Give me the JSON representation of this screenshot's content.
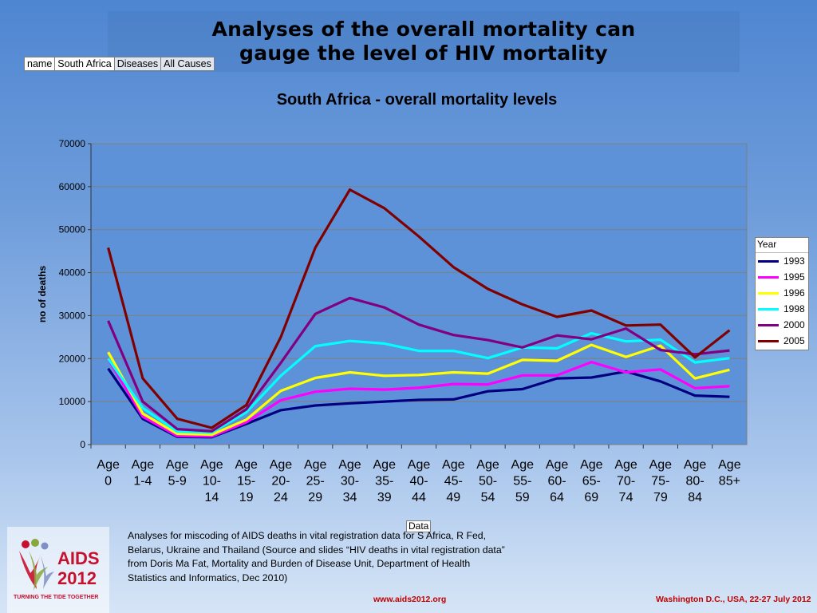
{
  "slide": {
    "title_line1": "Analyses of the overall mortality can",
    "title_line2": "gauge the level of HIV mortality",
    "caption": "Analyses for miscoding of AIDS deaths in vital registration data for S Africa, R Fed, Belarus, Ukraine and Thailand (Source and slides “HIV deaths in vital registration data” from Doris Ma Fat, Mortality and Burden of Disease Unit, Department of Health Statistics and Informatics, Dec 2010)",
    "footer_url": "www.aids2012.org",
    "footer_event": "Washington D.C., USA, 22-27 July 2012"
  },
  "filter_bar": {
    "name_label": "name",
    "name_value": "South Africa",
    "diseases_label": "Diseases",
    "diseases_value": "All Causes"
  },
  "logo": {
    "text_main": "AIDS",
    "text_year": "2012",
    "tagline": "TURNING THE TIDE TOGETHER"
  },
  "chart_data": {
    "type": "line",
    "title": "South Africa - overall mortality levels",
    "xlabel": "Data",
    "ylabel": "no of deaths",
    "ylim": [
      0,
      70000
    ],
    "yticks": [
      0,
      10000,
      20000,
      30000,
      40000,
      50000,
      60000,
      70000
    ],
    "grid": true,
    "legend_title": "Year",
    "legend_position": "right",
    "categories": [
      [
        "Age",
        "0"
      ],
      [
        "Age",
        "1-4"
      ],
      [
        "Age",
        "5-9"
      ],
      [
        "Age",
        "10-",
        "14"
      ],
      [
        "Age",
        "15-",
        "19"
      ],
      [
        "Age",
        "20-",
        "24"
      ],
      [
        "Age",
        "25-",
        "29"
      ],
      [
        "Age",
        "30-",
        "34"
      ],
      [
        "Age",
        "35-",
        "39"
      ],
      [
        "Age",
        "40-",
        "44"
      ],
      [
        "Age",
        "45-",
        "49"
      ],
      [
        "Age",
        "50-",
        "54"
      ],
      [
        "Age",
        "55-",
        "59"
      ],
      [
        "Age",
        "60-",
        "64"
      ],
      [
        "Age",
        "65-",
        "69"
      ],
      [
        "Age",
        "70-",
        "74"
      ],
      [
        "Age",
        "75-",
        "79"
      ],
      [
        "Age",
        "80-",
        "84"
      ],
      [
        "Age",
        "85+"
      ]
    ],
    "series": [
      {
        "name": "1993",
        "color": "#000080",
        "values": [
          17700,
          6000,
          1800,
          1700,
          4800,
          8000,
          9100,
          9600,
          10000,
          10400,
          10500,
          12400,
          12900,
          15400,
          15600,
          17000,
          14700,
          11400,
          11100
        ]
      },
      {
        "name": "1995",
        "color": "#ff00ff",
        "values": [
          19900,
          6500,
          2000,
          1900,
          5200,
          10300,
          12300,
          13000,
          12800,
          13200,
          14100,
          14000,
          16100,
          16100,
          19200,
          16800,
          17500,
          13100,
          13600
        ]
      },
      {
        "name": "1996",
        "color": "#ffff00",
        "values": [
          21500,
          7200,
          2500,
          2300,
          5800,
          12500,
          15500,
          16800,
          16000,
          16200,
          16800,
          16500,
          19700,
          19500,
          23200,
          20400,
          23000,
          15400,
          17400
        ]
      },
      {
        "name": "1998",
        "color": "#00ffff",
        "values": [
          20000,
          8500,
          3000,
          2800,
          7500,
          16000,
          22900,
          24100,
          23500,
          21800,
          21800,
          20100,
          22600,
          22400,
          25900,
          24000,
          24400,
          19100,
          20100
        ]
      },
      {
        "name": "2000",
        "color": "#800080",
        "values": [
          28800,
          10000,
          3600,
          3100,
          8200,
          19000,
          30400,
          34100,
          31900,
          27900,
          25500,
          24300,
          22600,
          25400,
          24500,
          27000,
          22000,
          21000,
          21900
        ]
      },
      {
        "name": "2005",
        "color": "#800000",
        "values": [
          45800,
          15400,
          6000,
          3900,
          9200,
          25000,
          45800,
          59300,
          55000,
          48400,
          41300,
          36200,
          32600,
          29700,
          31200,
          27700,
          27900,
          20300,
          26600
        ]
      }
    ]
  }
}
